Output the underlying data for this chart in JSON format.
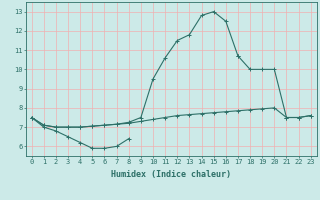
{
  "xlabel": "Humidex (Indice chaleur)",
  "x_values": [
    0,
    1,
    2,
    3,
    4,
    5,
    6,
    7,
    8,
    9,
    10,
    11,
    12,
    13,
    14,
    15,
    16,
    17,
    18,
    19,
    20,
    21,
    22,
    23
  ],
  "line_bottom": [
    7.5,
    7.0,
    6.8,
    6.5,
    6.2,
    5.9,
    5.9,
    6.0,
    6.4,
    null,
    null,
    null,
    null,
    null,
    null,
    null,
    null,
    null,
    null,
    null,
    null,
    null,
    null,
    null
  ],
  "line_flat": [
    7.5,
    7.1,
    7.0,
    7.0,
    7.0,
    7.05,
    7.1,
    7.15,
    7.2,
    7.3,
    7.4,
    7.5,
    7.6,
    7.65,
    7.7,
    7.75,
    7.8,
    7.85,
    7.9,
    7.95,
    8.0,
    7.5,
    7.5,
    7.6
  ],
  "line_top": [
    7.5,
    7.1,
    7.0,
    7.0,
    7.0,
    7.05,
    7.1,
    7.15,
    7.25,
    7.5,
    9.5,
    10.6,
    11.5,
    11.8,
    12.8,
    13.0,
    12.5,
    10.7,
    null,
    null,
    null,
    null,
    null,
    null
  ],
  "line_right": [
    null,
    null,
    null,
    null,
    null,
    null,
    null,
    null,
    null,
    null,
    null,
    null,
    null,
    null,
    null,
    null,
    null,
    10.7,
    10.0,
    10.0,
    10.0,
    7.5,
    7.5,
    7.6
  ],
  "bg_color": "#cceae8",
  "grid_color": "#f0b0b0",
  "line_color": "#2d7068",
  "xlim": [
    -0.5,
    23.5
  ],
  "ylim": [
    5.5,
    13.5
  ],
  "yticks": [
    6,
    7,
    8,
    9,
    10,
    11,
    12,
    13
  ],
  "xticks": [
    0,
    1,
    2,
    3,
    4,
    5,
    6,
    7,
    8,
    9,
    10,
    11,
    12,
    13,
    14,
    15,
    16,
    17,
    18,
    19,
    20,
    21,
    22,
    23
  ],
  "tick_fontsize": 5.0,
  "xlabel_fontsize": 6.0
}
